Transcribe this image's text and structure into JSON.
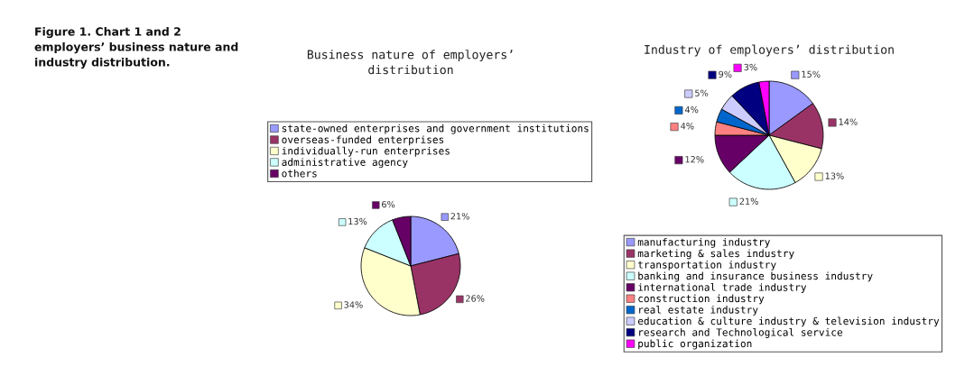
{
  "chart_data": [
    {
      "type": "pie",
      "title": "Business nature of employers’\ndistribution",
      "annotations": [
        "Figure 1. Chart 1 and 2\nemployers’ business nature and\nindustry distribution."
      ],
      "legend": "top",
      "categories": [
        "state-owned enterprises and government institutions",
        "overseas-funded enterprises",
        "individually-run enterprises",
        "administrative agency",
        "others"
      ],
      "values": [
        21,
        26,
        34,
        13,
        6
      ],
      "value_labels": [
        "21%",
        "26%",
        "34%",
        "13%",
        "6%"
      ],
      "colors": [
        "#9999ff",
        "#993366",
        "#ffffcc",
        "#ccffff",
        "#660066"
      ]
    },
    {
      "type": "pie",
      "title": "Industry of employers’ distribution",
      "legend": "bottom",
      "categories": [
        "manufacturing industry",
        "marketing & sales industry",
        "transportation industry",
        "banking and insurance business industry",
        "international trade industry",
        "construction industry",
        "real estate industry",
        "education & culture industry & television industry",
        "research and Technological service",
        "public organization"
      ],
      "values": [
        15,
        14,
        13,
        21,
        12,
        4,
        4,
        5,
        9,
        3
      ],
      "value_labels": [
        "15%",
        "14%",
        "13%",
        "21%",
        "12%",
        "4%",
        "4%",
        "5%",
        "9%",
        "3%"
      ],
      "colors": [
        "#9999ff",
        "#993366",
        "#ffffcc",
        "#ccffff",
        "#660066",
        "#ff8080",
        "#0066cc",
        "#ccccff",
        "#000080",
        "#ff00ff"
      ]
    }
  ]
}
